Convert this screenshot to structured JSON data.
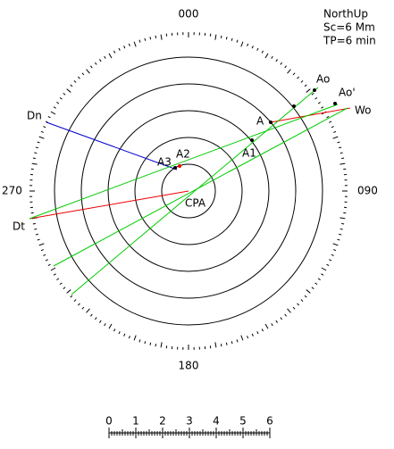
{
  "bearings": {
    "north": "000",
    "east": "090",
    "south": "180",
    "west": "270"
  },
  "info": [
    "NorthUp",
    "Sc=6 Mm",
    "TP=6 min"
  ],
  "points": {
    "Dn": "Dn",
    "Dt": "Dt",
    "A": "A",
    "A1": "A1",
    "A2": "A2",
    "A3": "A3",
    "Ao": "Ao",
    "Ao2": "Ao'",
    "Wo": "Wo",
    "CPA": "CPA"
  },
  "scale": {
    "labels": [
      "0",
      "1",
      "2",
      "3",
      "4",
      "5",
      "6"
    ]
  }
}
